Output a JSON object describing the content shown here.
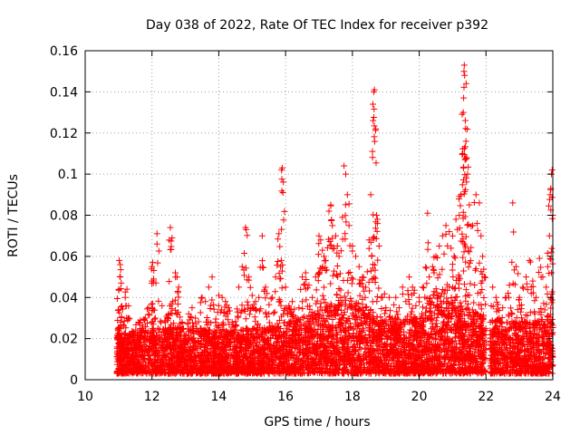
{
  "chart_data": {
    "type": "scatter",
    "title": "Day 038 of 2022, Rate Of TEC Index for receiver p392",
    "xlabel": "GPS time / hours",
    "ylabel": "ROTI / TECUs",
    "xlim": [
      10,
      24
    ],
    "ylim": [
      0,
      0.16
    ],
    "xticks": [
      10,
      12,
      14,
      16,
      18,
      20,
      22,
      24
    ],
    "xtick_labels": [
      "10",
      "12",
      "14",
      "16",
      "18",
      "20",
      "22",
      "24"
    ],
    "yticks": [
      0,
      0.02,
      0.04,
      0.06,
      0.08,
      0.1,
      0.12,
      0.14,
      0.16
    ],
    "ytick_labels": [
      "0",
      "0.02",
      "0.04",
      "0.06",
      "0.08",
      "0.1",
      "0.12",
      "0.14",
      "0.16"
    ],
    "grid": true,
    "marker": "+",
    "color": "#ff0000",
    "series": [
      {
        "name": "ROTI",
        "points": [
          [
            11.0,
            0.012
          ],
          [
            11.0,
            0.034
          ],
          [
            11.02,
            0.058
          ],
          [
            11.05,
            0.056
          ],
          [
            11.05,
            0.05
          ],
          [
            11.08,
            0.047
          ],
          [
            11.1,
            0.02
          ],
          [
            11.15,
            0.015
          ],
          [
            11.2,
            0.04
          ],
          [
            11.25,
            0.044
          ],
          [
            11.3,
            0.03
          ],
          [
            11.4,
            0.018
          ],
          [
            11.5,
            0.022
          ],
          [
            11.6,
            0.028
          ],
          [
            11.7,
            0.025
          ],
          [
            11.8,
            0.03
          ],
          [
            11.9,
            0.035
          ],
          [
            12.0,
            0.055
          ],
          [
            12.02,
            0.057
          ],
          [
            12.05,
            0.049
          ],
          [
            12.1,
            0.03
          ],
          [
            12.15,
            0.071
          ],
          [
            12.3,
            0.036
          ],
          [
            12.4,
            0.028
          ],
          [
            12.5,
            0.032
          ],
          [
            12.55,
            0.074
          ],
          [
            12.6,
            0.069
          ],
          [
            12.7,
            0.052
          ],
          [
            12.75,
            0.05
          ],
          [
            12.8,
            0.045
          ],
          [
            12.9,
            0.028
          ],
          [
            13.0,
            0.02
          ],
          [
            13.1,
            0.032
          ],
          [
            13.2,
            0.035
          ],
          [
            13.3,
            0.03
          ],
          [
            13.5,
            0.04
          ],
          [
            13.6,
            0.038
          ],
          [
            13.7,
            0.045
          ],
          [
            13.8,
            0.05
          ],
          [
            13.9,
            0.028
          ],
          [
            14.0,
            0.041
          ],
          [
            14.1,
            0.04
          ],
          [
            14.2,
            0.038
          ],
          [
            14.3,
            0.035
          ],
          [
            14.4,
            0.028
          ],
          [
            14.5,
            0.026
          ],
          [
            14.6,
            0.045
          ],
          [
            14.7,
            0.055
          ],
          [
            14.8,
            0.074
          ],
          [
            14.82,
            0.073
          ],
          [
            14.9,
            0.05
          ],
          [
            15.0,
            0.041
          ],
          [
            15.1,
            0.038
          ],
          [
            15.2,
            0.04
          ],
          [
            15.3,
            0.07
          ],
          [
            15.4,
            0.045
          ],
          [
            15.5,
            0.032
          ],
          [
            15.6,
            0.04
          ],
          [
            15.7,
            0.05
          ],
          [
            15.8,
            0.071
          ],
          [
            15.85,
            0.055
          ],
          [
            15.88,
            0.102
          ],
          [
            15.9,
            0.103
          ],
          [
            15.92,
            0.091
          ],
          [
            16.0,
            0.045
          ],
          [
            16.1,
            0.036
          ],
          [
            16.2,
            0.038
          ],
          [
            16.3,
            0.03
          ],
          [
            16.4,
            0.035
          ],
          [
            16.5,
            0.05
          ],
          [
            16.6,
            0.052
          ],
          [
            16.7,
            0.046
          ],
          [
            16.8,
            0.04
          ],
          [
            16.9,
            0.05
          ],
          [
            17.0,
            0.07
          ],
          [
            17.05,
            0.068
          ],
          [
            17.1,
            0.063
          ],
          [
            17.15,
            0.06
          ],
          [
            17.2,
            0.058
          ],
          [
            17.3,
            0.082
          ],
          [
            17.35,
            0.085
          ],
          [
            17.4,
            0.075
          ],
          [
            17.5,
            0.07
          ],
          [
            17.55,
            0.065
          ],
          [
            17.6,
            0.06
          ],
          [
            17.7,
            0.079
          ],
          [
            17.75,
            0.104
          ],
          [
            17.8,
            0.1
          ],
          [
            17.85,
            0.09
          ],
          [
            17.9,
            0.075
          ],
          [
            18.0,
            0.065
          ],
          [
            18.1,
            0.06
          ],
          [
            18.2,
            0.055
          ],
          [
            18.3,
            0.05
          ],
          [
            18.4,
            0.045
          ],
          [
            18.5,
            0.068
          ],
          [
            18.55,
            0.09
          ],
          [
            18.6,
            0.111
          ],
          [
            18.62,
            0.126
          ],
          [
            18.64,
            0.14
          ],
          [
            18.66,
            0.141
          ],
          [
            18.7,
            0.122
          ],
          [
            18.72,
            0.08
          ],
          [
            18.75,
            0.078
          ],
          [
            18.8,
            0.065
          ],
          [
            18.9,
            0.04
          ],
          [
            19.0,
            0.035
          ],
          [
            19.1,
            0.04
          ],
          [
            19.2,
            0.03
          ],
          [
            19.3,
            0.04
          ],
          [
            19.4,
            0.035
          ],
          [
            19.5,
            0.045
          ],
          [
            19.6,
            0.038
          ],
          [
            19.7,
            0.05
          ],
          [
            19.8,
            0.045
          ],
          [
            19.9,
            0.036
          ],
          [
            20.0,
            0.04
          ],
          [
            20.1,
            0.045
          ],
          [
            20.25,
            0.081
          ],
          [
            20.3,
            0.05
          ],
          [
            20.4,
            0.055
          ],
          [
            20.5,
            0.06
          ],
          [
            20.6,
            0.065
          ],
          [
            20.7,
            0.07
          ],
          [
            20.8,
            0.075
          ],
          [
            20.9,
            0.072
          ],
          [
            21.0,
            0.07
          ],
          [
            21.05,
            0.06
          ],
          [
            21.1,
            0.078
          ],
          [
            21.2,
            0.08
          ],
          [
            21.25,
            0.09
          ],
          [
            21.3,
            0.11
          ],
          [
            21.32,
            0.13
          ],
          [
            21.33,
            0.137
          ],
          [
            21.34,
            0.15
          ],
          [
            21.35,
            0.153
          ],
          [
            21.36,
            0.148
          ],
          [
            21.38,
            0.126
          ],
          [
            21.4,
            0.116
          ],
          [
            21.42,
            0.108
          ],
          [
            21.45,
            0.1
          ],
          [
            21.5,
            0.085
          ],
          [
            21.6,
            0.075
          ],
          [
            21.7,
            0.09
          ],
          [
            21.8,
            0.086
          ],
          [
            21.85,
            0.07
          ],
          [
            21.9,
            0.06
          ],
          [
            21.95,
            0.05
          ],
          [
            22.2,
            0.045
          ],
          [
            22.3,
            0.04
          ],
          [
            22.4,
            0.03
          ],
          [
            22.5,
            0.035
          ],
          [
            22.6,
            0.04
          ],
          [
            22.7,
            0.046
          ],
          [
            22.8,
            0.086
          ],
          [
            22.9,
            0.055
          ],
          [
            23.0,
            0.04
          ],
          [
            23.1,
            0.045
          ],
          [
            23.2,
            0.05
          ],
          [
            23.3,
            0.058
          ],
          [
            23.4,
            0.048
          ],
          [
            23.5,
            0.04
          ],
          [
            23.6,
            0.059
          ],
          [
            23.7,
            0.05
          ],
          [
            23.8,
            0.045
          ],
          [
            23.85,
            0.055
          ],
          [
            23.9,
            0.07
          ],
          [
            23.92,
            0.09
          ],
          [
            23.94,
            0.093
          ],
          [
            23.96,
            0.1
          ],
          [
            23.98,
            0.102
          ],
          [
            24.0,
            0.08
          ]
        ],
        "envelope": {
          "description": "dense band of points from 10.95 to 24.0 h, gap 22.0-22.1 h",
          "x_start": 10.95,
          "x_end": 24.0,
          "gap": [
            22.0,
            22.12
          ],
          "base_min": 0.003,
          "base_max_profile": [
            [
              11,
              0.022
            ],
            [
              12,
              0.025
            ],
            [
              13,
              0.026
            ],
            [
              14,
              0.024
            ],
            [
              15,
              0.025
            ],
            [
              16,
              0.028
            ],
            [
              17,
              0.034
            ],
            [
              18,
              0.04
            ],
            [
              19,
              0.03
            ],
            [
              20,
              0.03
            ],
            [
              20.5,
              0.045
            ],
            [
              21,
              0.04
            ],
            [
              21.5,
              0.035
            ],
            [
              22,
              0.03
            ],
            [
              23,
              0.028
            ],
            [
              24,
              0.03
            ]
          ]
        }
      }
    ]
  }
}
